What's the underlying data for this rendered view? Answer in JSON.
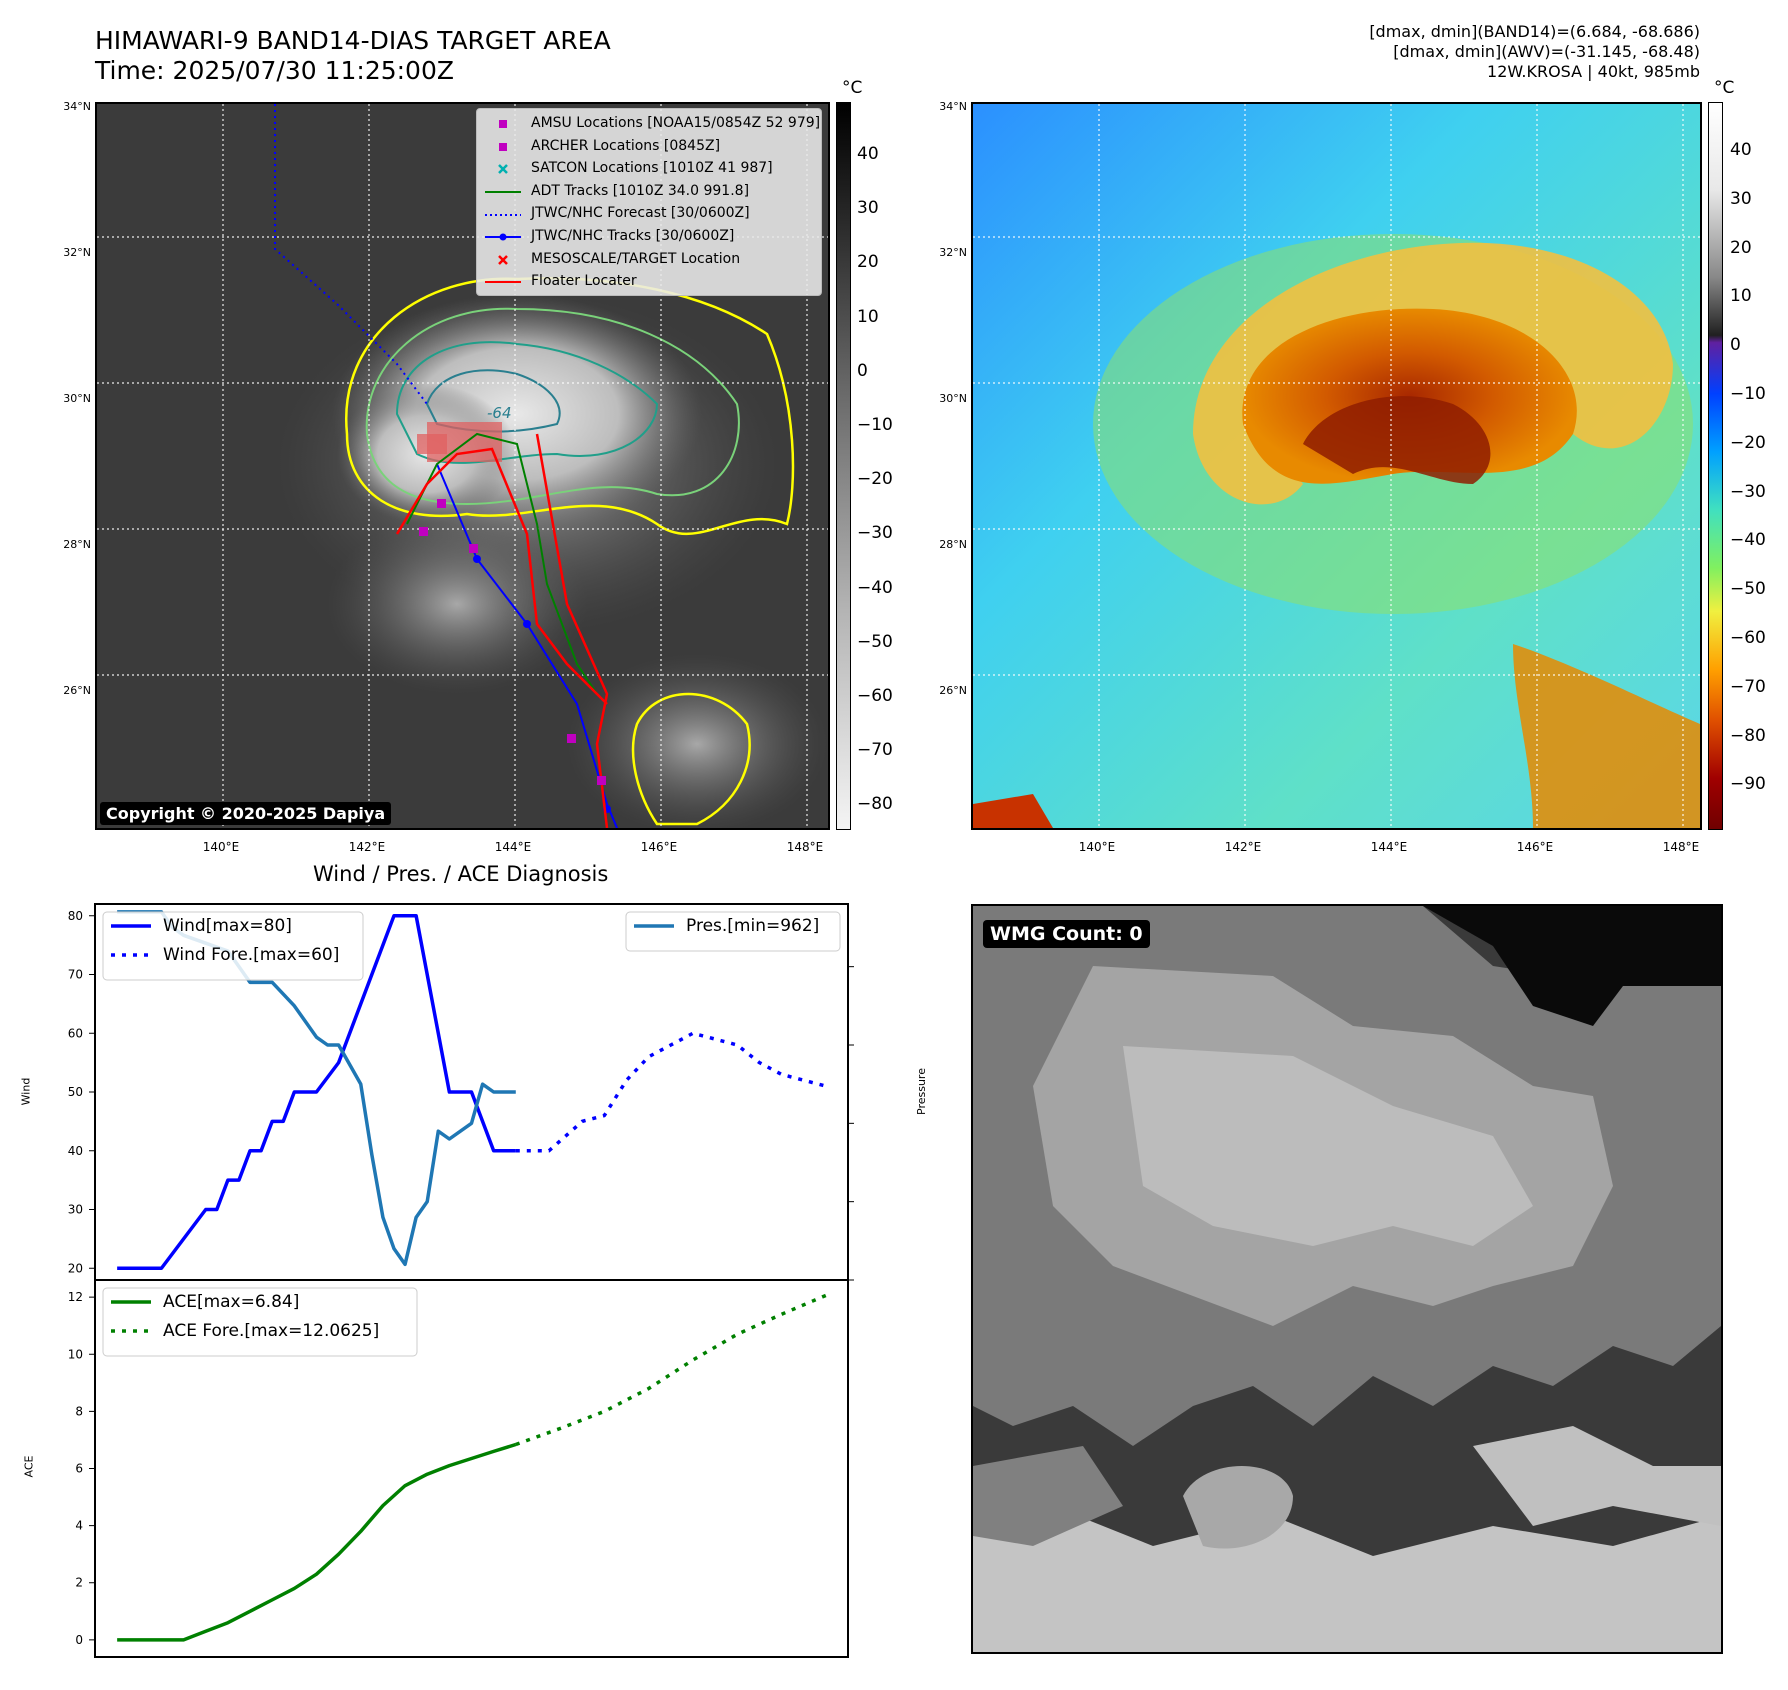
{
  "header": {
    "title_line1": "HIMAWARI-9 BAND14-DIAS TARGET AREA",
    "title_line2": "Time: 2025/07/30 11:25:00Z",
    "info_line1": "[dmax, dmin](BAND14)=(6.684, -68.686)",
    "info_line2": "[dmax, dmin](AWV)=(-31.145, -68.48)",
    "info_line3": "12W.KROSA | 40kt, 985mb"
  },
  "map": {
    "lat_labels": [
      "34°N",
      "32°N",
      "30°N",
      "28°N",
      "26°N"
    ],
    "lon_labels": [
      "140°E",
      "142°E",
      "144°E",
      "146°E",
      "148°E"
    ],
    "copyright": "Copyright © 2020-2025 Dapiya",
    "contour_label": "-64",
    "legend": [
      {
        "label": "AMSU Locations [NOAA15/0854Z 52 979]",
        "color": "#c000c0",
        "symbol": "square"
      },
      {
        "label": "ARCHER Locations [0845Z]",
        "color": "#c000c0",
        "symbol": "square"
      },
      {
        "label": "SATCON Locations [1010Z 41 987]",
        "color": "#00b0b0",
        "symbol": "x"
      },
      {
        "label": "ADT Tracks [1010Z 34.0 991.8]",
        "color": "#008000",
        "symbol": "line"
      },
      {
        "label": "JTWC/NHC Forecast [30/0600Z]",
        "color": "#0000ff",
        "symbol": "dotted"
      },
      {
        "label": "JTWC/NHC Tracks [30/0600Z]",
        "color": "#0000ff",
        "symbol": "line-dot"
      },
      {
        "label": "MESOSCALE/TARGET Location",
        "color": "#ff0000",
        "symbol": "x"
      },
      {
        "label": "Floater Locater",
        "color": "#ff0000",
        "symbol": "line"
      }
    ]
  },
  "colorbar_ir": {
    "unit": "°C",
    "ticks": [
      "40",
      "30",
      "20",
      "10",
      "0",
      "−10",
      "−20",
      "−30",
      "−40",
      "−50",
      "−60",
      "−70",
      "−80"
    ]
  },
  "colorbar_wv": {
    "unit": "°C",
    "ticks": [
      "40",
      "30",
      "20",
      "10",
      "0",
      "−10",
      "−20",
      "−30",
      "−40",
      "−50",
      "−60",
      "−70",
      "−80",
      "−90"
    ]
  },
  "diagnosis": {
    "title": "Wind / Pres. / ACE Diagnosis",
    "wind_ylabel": "Wind",
    "pres_ylabel": "Pressure",
    "ace_ylabel": "ACE",
    "legend_wind": "Wind[max=80]",
    "legend_wind_fore": "Wind Fore.[max=60]",
    "legend_pres": "Pres.[min=962]",
    "legend_ace": "ACE[max=6.84]",
    "legend_ace_fore": "ACE Fore.[max=12.0625]",
    "wmg_count": "WMG Count: 0"
  },
  "chart_data": [
    {
      "type": "line",
      "title": "Wind / Pres. / ACE Diagnosis",
      "ylabel": "Wind",
      "ylim": [
        18,
        82
      ],
      "y2label": "Pressure",
      "y2lim": [
        960,
        1008
      ],
      "x": [
        0,
        1,
        2,
        3,
        4,
        5,
        6,
        7,
        8,
        9,
        10,
        11,
        12,
        13,
        14,
        15,
        16,
        17,
        18,
        19,
        20,
        21,
        22,
        23,
        24,
        25,
        26,
        27,
        28,
        29,
        30,
        31,
        32,
        33,
        34,
        35,
        36,
        37,
        38,
        39,
        40,
        41,
        42,
        43,
        44,
        45,
        46,
        47,
        48,
        49,
        50,
        51,
        52,
        53,
        54,
        55,
        56,
        57,
        58,
        59,
        60,
        61,
        62,
        63,
        64
      ],
      "xlim": [
        -2,
        66
      ],
      "series": [
        {
          "name": "Wind[max=80]",
          "color": "#0000ff",
          "style": "solid",
          "axis": "left",
          "x": [
            0,
            4,
            6,
            8,
            9,
            10,
            11,
            12,
            13,
            14,
            15,
            16,
            17,
            18,
            20,
            22,
            24,
            25,
            26,
            27,
            28,
            29,
            30,
            32,
            34,
            36
          ],
          "values": [
            20,
            20,
            25,
            30,
            30,
            35,
            35,
            40,
            40,
            45,
            45,
            50,
            50,
            50,
            55,
            65,
            75,
            80,
            80,
            80,
            70,
            60,
            50,
            50,
            40,
            40
          ]
        },
        {
          "name": "Wind Fore.[max=60]",
          "color": "#0000ff",
          "style": "dotted",
          "axis": "left",
          "x": [
            36,
            39,
            42,
            44,
            46,
            48,
            50,
            52,
            54,
            56,
            58,
            60,
            62,
            64
          ],
          "values": [
            40,
            40,
            45,
            46,
            52,
            56,
            58,
            60,
            59,
            58,
            55,
            53,
            52,
            51
          ]
        },
        {
          "name": "Pres.[min=962]",
          "color": "#1f77b4",
          "style": "solid",
          "axis": "right",
          "x": [
            0,
            2,
            4,
            5,
            6,
            8,
            10,
            11,
            12,
            14,
            16,
            18,
            19,
            20,
            22,
            23,
            24,
            25,
            26,
            27,
            28,
            29,
            30,
            32,
            33,
            34,
            36
          ],
          "values": [
            1007,
            1007,
            1007,
            1005,
            1004,
            1003,
            1002,
            1000,
            998,
            998,
            995,
            991,
            990,
            990,
            985,
            976,
            968,
            964,
            962,
            968,
            970,
            979,
            978,
            980,
            985,
            984,
            984
          ]
        },
        {
          "name": "ACE[max=6.84]",
          "color": "#008000",
          "style": "solid",
          "axis": "ace",
          "x": [
            0,
            2,
            4,
            6,
            8,
            10,
            12,
            14,
            16,
            18,
            20,
            22,
            24,
            26,
            28,
            30,
            32,
            34,
            36
          ],
          "values": [
            0,
            0,
            0,
            0,
            0.3,
            0.6,
            1.0,
            1.4,
            1.8,
            2.3,
            3.0,
            3.8,
            4.7,
            5.4,
            5.8,
            6.1,
            6.35,
            6.6,
            6.84
          ]
        },
        {
          "name": "ACE Fore.[max=12.0625]",
          "color": "#008000",
          "style": "dotted",
          "axis": "ace",
          "x": [
            36,
            40,
            44,
            48,
            52,
            56,
            60,
            64
          ],
          "values": [
            6.84,
            7.4,
            8.0,
            8.8,
            9.8,
            10.7,
            11.4,
            12.06
          ]
        }
      ],
      "ace_ylim": [
        -0.6,
        12.6
      ],
      "wind_ticks": [
        20,
        30,
        40,
        50,
        60,
        70,
        80
      ],
      "pres_ticks": [
        960,
        970,
        980,
        990,
        1000
      ],
      "ace_ticks": [
        0,
        2,
        4,
        6,
        8,
        10,
        12
      ]
    }
  ]
}
